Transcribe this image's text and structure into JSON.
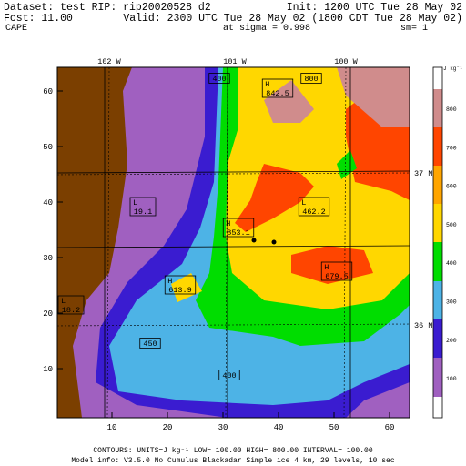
{
  "header": {
    "dataset": "Dataset: test   RIP: rip20020528 d2",
    "init": "Init: 1200 UTC Tue 28 May 02",
    "fcst": "Fcst:     11.00",
    "valid": "Valid: 2300 UTC Tue 28 May 02 (1800 CDT Tue 28 May 02)",
    "field": "CAPE",
    "level": "at sigma = 0.998",
    "smoothing": "sm= 1"
  },
  "map": {
    "x_ticks": [
      10,
      20,
      30,
      40,
      50,
      60
    ],
    "y_ticks": [
      10,
      20,
      30,
      40,
      50,
      60
    ],
    "longitudes": [
      "102 W",
      "101 W",
      "100 W"
    ],
    "latitudes": [
      "37 N",
      "36 N"
    ],
    "labels": [
      {
        "kind": "",
        "value": "400"
      },
      {
        "kind": "",
        "value": "800"
      },
      {
        "kind": "H",
        "value": "842.5"
      },
      {
        "kind": "L",
        "value": "19.1"
      },
      {
        "kind": "H",
        "value": "853.1"
      },
      {
        "kind": "L",
        "value": "462.2"
      },
      {
        "kind": "H",
        "value": "679.5"
      },
      {
        "kind": "H",
        "value": "613.9"
      },
      {
        "kind": "L",
        "value": "18.2"
      },
      {
        "kind": "",
        "value": "450"
      },
      {
        "kind": "",
        "value": "400"
      }
    ]
  },
  "colorbar": {
    "units": "J kg⁻¹",
    "levels": [
      "800",
      "700",
      "600",
      "500",
      "400",
      "300",
      "200",
      "100"
    ]
  },
  "footer": {
    "contours": "CONTOURS:  UNITS=J kg⁻¹   LOW=   100.00     HIGH=   800.00     INTERVAL=    100.00",
    "model_info": "Model info: V3.5.0 No Cumulus Blackadar  Simple ice     4 km,  29 levels,   10 sec"
  }
}
